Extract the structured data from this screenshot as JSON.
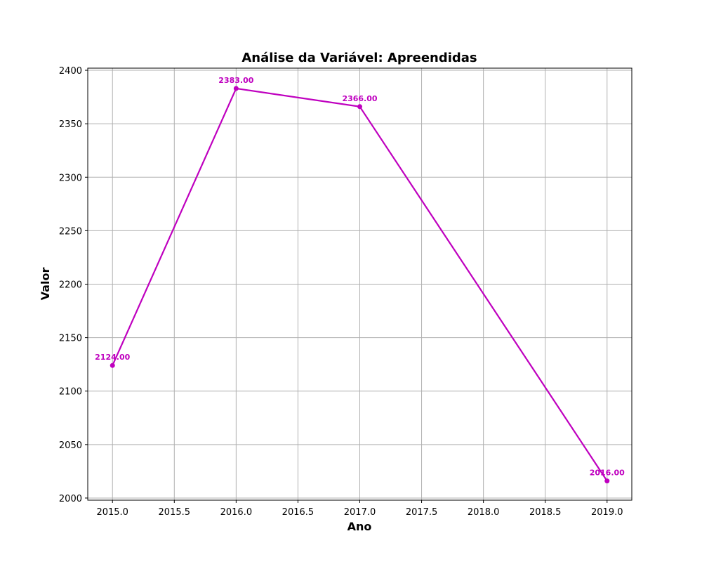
{
  "chart_data": {
    "type": "line",
    "title": "Análise da Variável: Apreendidas",
    "xlabel": "Ano",
    "ylabel": "Valor",
    "x": [
      2015,
      2016,
      2017,
      2019
    ],
    "series": [
      {
        "values": [
          2124,
          2383,
          2366,
          2016
        ],
        "labels": [
          "2124.00",
          "2383.00",
          "2366.00",
          "2016.00"
        ],
        "color": "#bf00bf"
      }
    ],
    "xlim": [
      2014.8,
      2019.2
    ],
    "ylim": [
      1998,
      2402
    ],
    "x_ticks": [
      "2015.0",
      "2015.5",
      "2016.0",
      "2016.5",
      "2017.0",
      "2017.5",
      "2018.0",
      "2018.5",
      "2019.0"
    ],
    "y_ticks": [
      "2000",
      "2050",
      "2100",
      "2150",
      "2200",
      "2250",
      "2300",
      "2350",
      "2400"
    ],
    "grid": true,
    "legend": "none"
  }
}
